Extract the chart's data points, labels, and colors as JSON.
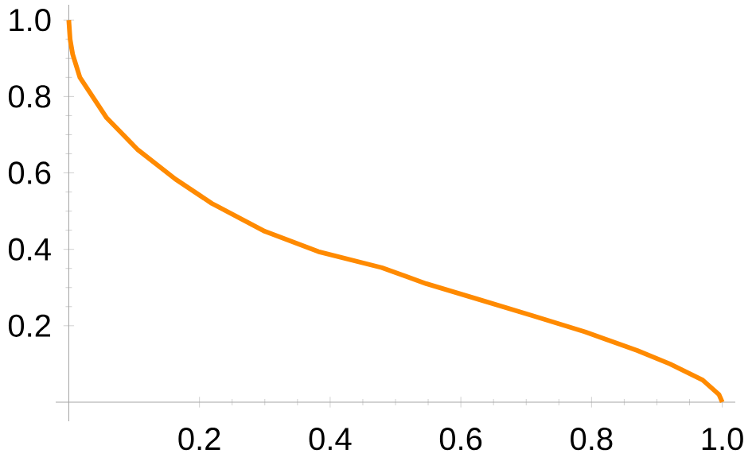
{
  "chart_data": {
    "type": "line",
    "x": [
      0,
      0.002,
      0.006,
      0.017,
      0.058,
      0.106,
      0.163,
      0.219,
      0.3,
      0.382,
      0.479,
      0.547,
      0.629,
      0.71,
      0.79,
      0.87,
      0.92,
      0.97,
      0.995,
      1.0
    ],
    "values": [
      1.0,
      0.95,
      0.91,
      0.85,
      0.744,
      0.66,
      0.584,
      0.52,
      0.447,
      0.394,
      0.352,
      0.31,
      0.268,
      0.226,
      0.184,
      0.135,
      0.1,
      0.058,
      0.02,
      0
    ],
    "color": "#ff8a00",
    "xlim": [
      -0.02,
      1.02
    ],
    "ylim": [
      -0.05,
      1.04
    ],
    "xticks": [
      0.2,
      0.4,
      0.6,
      0.8,
      {
        "value": 1.0,
        "label": "1.0"
      }
    ],
    "yticks": [
      0.2,
      0.4,
      0.6,
      0.8,
      {
        "value": 1.0,
        "label": "1.0"
      }
    ]
  }
}
